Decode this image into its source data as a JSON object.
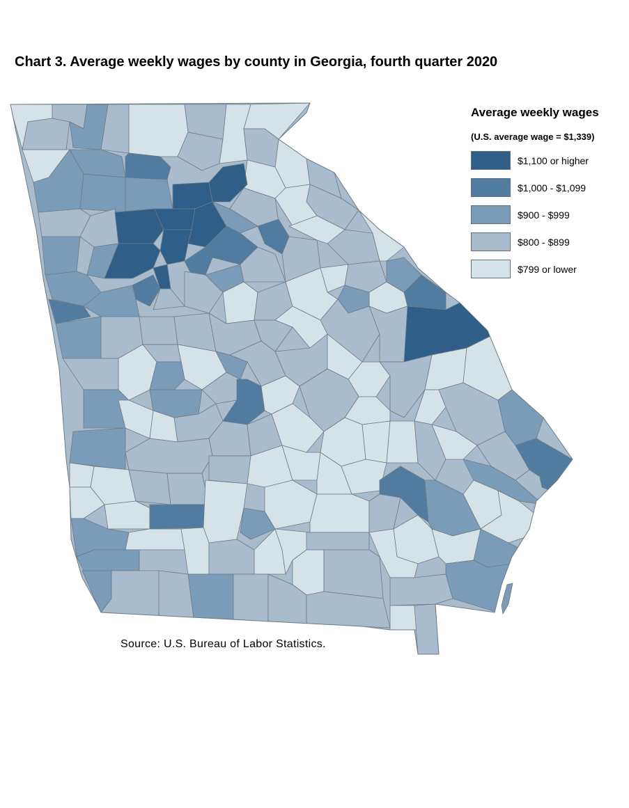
{
  "title": "Chart 3. Average weekly wages by county in Georgia, fourth quarter 2020",
  "legend": {
    "title": "Average weekly wages",
    "subtitle": "(U.S. average wage = $1,339)",
    "items": [
      {
        "label": "$1,100 or higher",
        "color": "#2f5f89"
      },
      {
        "label": "$1,000 - $1,099",
        "color": "#517c9f"
      },
      {
        "label": "$900 - $999",
        "color": "#7b9cb8"
      },
      {
        "label": "$800 - $899",
        "color": "#a8bccd"
      },
      {
        "label": "$799 or lower",
        "color": "#d5e3e8"
      }
    ]
  },
  "source": "Source: U.S. Bureau of Labor Statistics.",
  "colors": {
    "border": "#6e7a84",
    "background": "#ffffff"
  }
}
